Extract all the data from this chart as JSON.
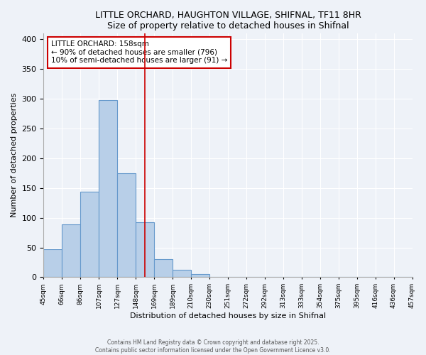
{
  "title": "LITTLE ORCHARD, HAUGHTON VILLAGE, SHIFNAL, TF11 8HR",
  "subtitle": "Size of property relative to detached houses in Shifnal",
  "bar_values": [
    47,
    89,
    144,
    298,
    175,
    92,
    30,
    13,
    5,
    1,
    0,
    0,
    1,
    0,
    0,
    0,
    0,
    1,
    0,
    1
  ],
  "bin_labels": [
    "45sqm",
    "66sqm",
    "86sqm",
    "107sqm",
    "127sqm",
    "148sqm",
    "169sqm",
    "189sqm",
    "210sqm",
    "230sqm",
    "251sqm",
    "272sqm",
    "292sqm",
    "313sqm",
    "333sqm",
    "354sqm",
    "375sqm",
    "395sqm",
    "416sqm",
    "436sqm",
    "457sqm"
  ],
  "bar_color": "#b8cfe8",
  "bar_edge_color": "#6699cc",
  "vline_pos": 5.5,
  "vline_color": "#cc0000",
  "ylabel": "Number of detached properties",
  "xlabel": "Distribution of detached houses by size in Shifnal",
  "ylim": [
    0,
    410
  ],
  "yticks": [
    0,
    50,
    100,
    150,
    200,
    250,
    300,
    350,
    400
  ],
  "annotation_title": "LITTLE ORCHARD: 158sqm",
  "annotation_line1": "← 90% of detached houses are smaller (796)",
  "annotation_line2": "10% of semi-detached houses are larger (91) →",
  "bg_color": "#eef2f8",
  "grid_color": "#ffffff",
  "footer1": "Contains HM Land Registry data © Crown copyright and database right 2025.",
  "footer2": "Contains public sector information licensed under the Open Government Licence v3.0."
}
